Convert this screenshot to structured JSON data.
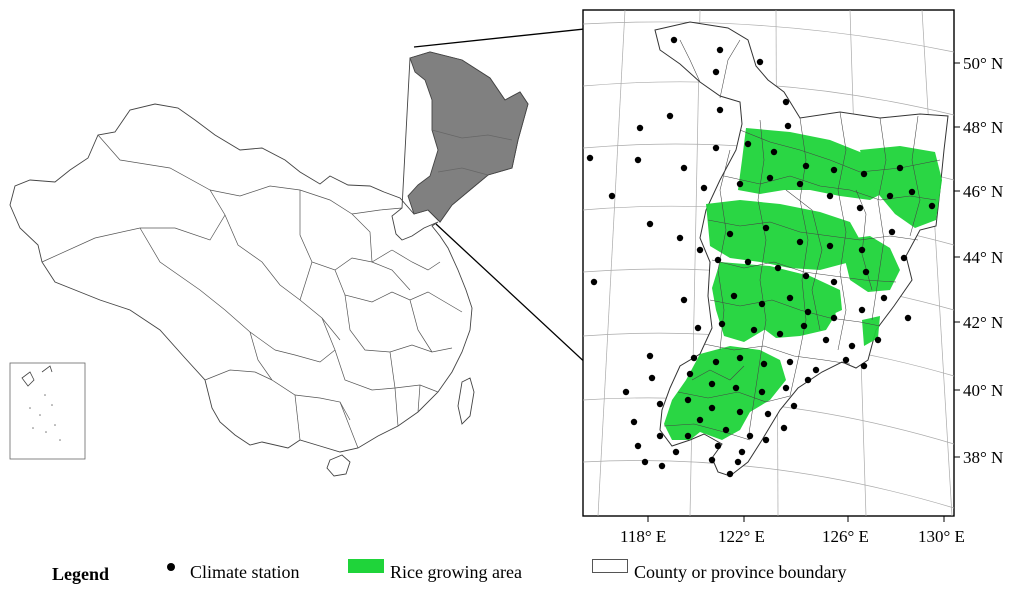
{
  "map": {
    "longitude_labels": [
      "118° E",
      "122° E",
      "126° E",
      "130° E"
    ],
    "latitude_labels": [
      "50° N",
      "48° N",
      "46° N",
      "44° N",
      "42° N",
      "40° N",
      "38° N"
    ],
    "highlight_color": "#808080",
    "rice_color": "#1fd43a",
    "station_color": "#000000"
  },
  "legend": {
    "title": "Legend",
    "station_label": "Climate station",
    "rice_label": "Rice growing area",
    "boundary_label": "County or province boundary"
  }
}
